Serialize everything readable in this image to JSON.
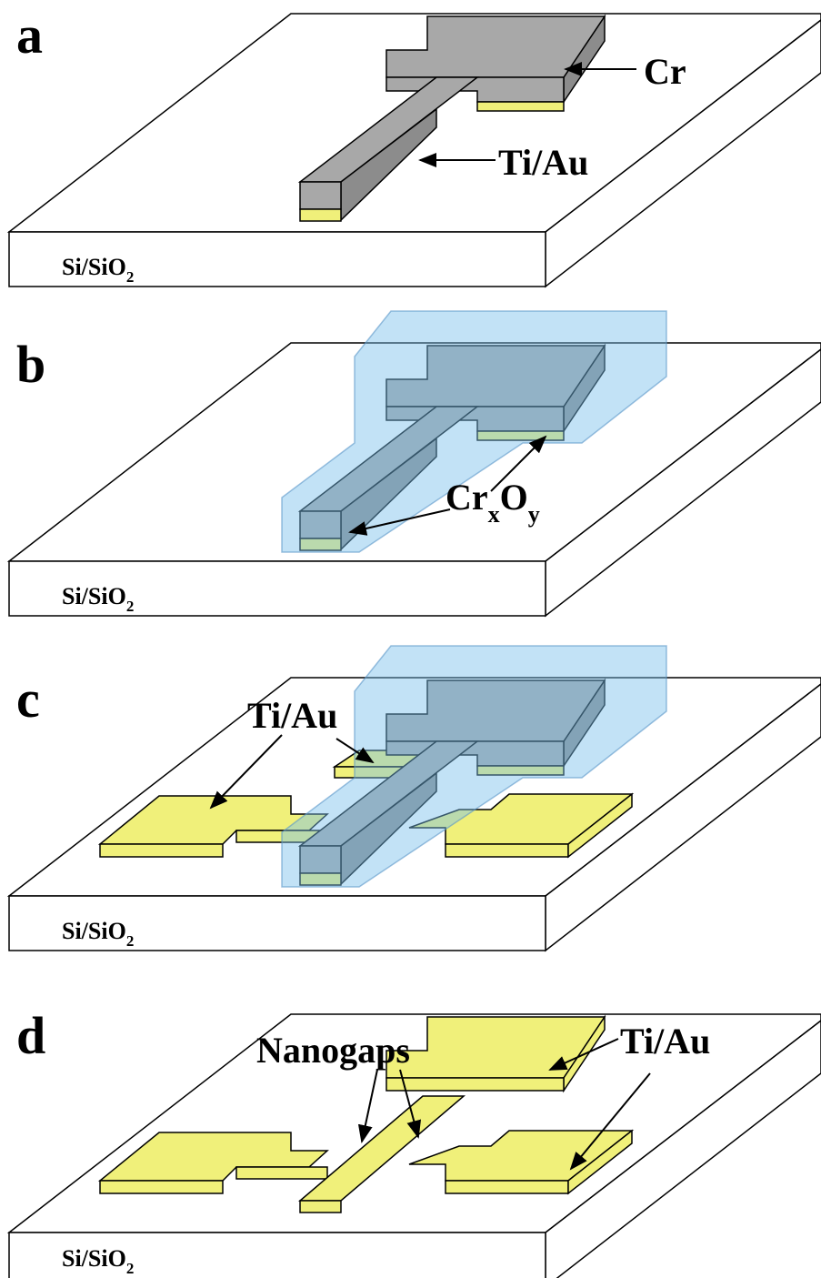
{
  "panels": [
    {
      "label": "a",
      "substrate": {
        "text": "Si/SiO",
        "sub": "2"
      },
      "annotations": [
        {
          "text": "Cr"
        },
        {
          "text": "Ti/Au"
        }
      ]
    },
    {
      "label": "b",
      "substrate": {
        "text": "Si/SiO",
        "sub": "2"
      },
      "annotations": [
        {
          "parts": [
            "Cr",
            "x",
            "O",
            "y"
          ]
        }
      ]
    },
    {
      "label": "c",
      "substrate": {
        "text": "Si/SiO",
        "sub": "2"
      },
      "annotations": [
        {
          "text": "Ti/Au"
        }
      ]
    },
    {
      "label": "d",
      "substrate": {
        "text": "Si/SiO",
        "sub": "2"
      },
      "annotations": [
        {
          "text": "Nanogaps"
        },
        {
          "text": "Ti/Au"
        }
      ]
    }
  ]
}
